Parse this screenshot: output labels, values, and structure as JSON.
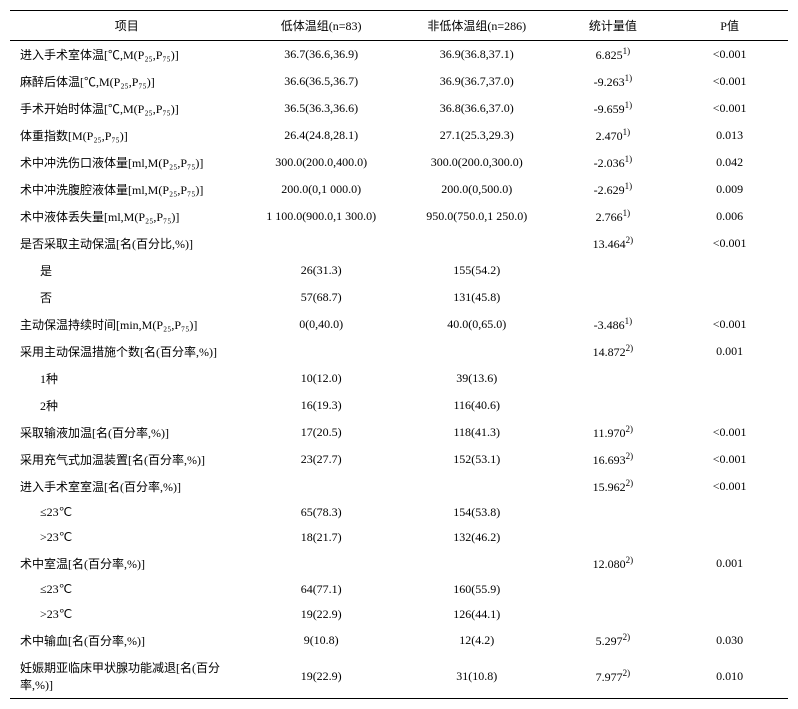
{
  "headers": {
    "item": "项目",
    "group1": "低体温组(n=83)",
    "group2": "非低体温组(n=286)",
    "stat": "统计量值",
    "pval": "P值"
  },
  "rows": [
    {
      "type": "data",
      "label": "进入手术室体温[℃,M(P₂₅,P₇₅)]",
      "g1": "36.7(36.6,36.9)",
      "g2": "36.9(36.8,37.1)",
      "stat": "6.825",
      "sup": "1)",
      "p": "<0.001"
    },
    {
      "type": "data",
      "label": "麻醉后体温[℃,M(P₂₅,P₇₅)]",
      "g1": "36.6(36.5,36.7)",
      "g2": "36.9(36.7,37.0)",
      "stat": "-9.263",
      "sup": "1)",
      "p": "<0.001"
    },
    {
      "type": "data",
      "label": "手术开始时体温[℃,M(P₂₅,P₇₅)]",
      "g1": "36.5(36.3,36.6)",
      "g2": "36.8(36.6,37.0)",
      "stat": "-9.659",
      "sup": "1)",
      "p": "<0.001"
    },
    {
      "type": "data",
      "label": "体重指数[M(P₂₅,P₇₅)]",
      "g1": "26.4(24.8,28.1)",
      "g2": "27.1(25.3,29.3)",
      "stat": "2.470",
      "sup": "1)",
      "p": "0.013"
    },
    {
      "type": "data",
      "label": "术中冲洗伤口液体量[ml,M(P₂₅,P₇₅)]",
      "g1": "300.0(200.0,400.0)",
      "g2": "300.0(200.0,300.0)",
      "stat": "-2.036",
      "sup": "1)",
      "p": "0.042"
    },
    {
      "type": "data",
      "label": "术中冲洗腹腔液体量[ml,M(P₂₅,P₇₅)]",
      "g1": "200.0(0,1 000.0)",
      "g2": "200.0(0,500.0)",
      "stat": "-2.629",
      "sup": "1)",
      "p": "0.009"
    },
    {
      "type": "data",
      "label": "术中液体丢失量[ml,M(P₂₅,P₇₅)]",
      "g1": "1 100.0(900.0,1 300.0)",
      "g2": "950.0(750.0,1 250.0)",
      "stat": "2.766",
      "sup": "1)",
      "p": "0.006"
    },
    {
      "type": "header",
      "label": "是否采取主动保温[名(百分比,%)]",
      "g1": "",
      "g2": "",
      "stat": "13.464",
      "sup": "2)",
      "p": "<0.001"
    },
    {
      "type": "indent",
      "label": "是",
      "g1": "26(31.3)",
      "g2": "155(54.2)",
      "stat": "",
      "sup": "",
      "p": ""
    },
    {
      "type": "indent",
      "label": "否",
      "g1": "57(68.7)",
      "g2": "131(45.8)",
      "stat": "",
      "sup": "",
      "p": ""
    },
    {
      "type": "data",
      "label": "主动保温持续时间[min,M(P₂₅,P₇₅)]",
      "g1": "0(0,40.0)",
      "g2": "40.0(0,65.0)",
      "stat": "-3.486",
      "sup": "1)",
      "p": "<0.001"
    },
    {
      "type": "header",
      "label": "采用主动保温措施个数[名(百分率,%)]",
      "g1": "",
      "g2": "",
      "stat": "14.872",
      "sup": "2)",
      "p": "0.001"
    },
    {
      "type": "indent",
      "label": "1种",
      "g1": "10(12.0)",
      "g2": "39(13.6)",
      "stat": "",
      "sup": "",
      "p": ""
    },
    {
      "type": "indent",
      "label": "2种",
      "g1": "16(19.3)",
      "g2": "116(40.6)",
      "stat": "",
      "sup": "",
      "p": ""
    },
    {
      "type": "data",
      "label": "采取输液加温[名(百分率,%)]",
      "g1": "17(20.5)",
      "g2": "118(41.3)",
      "stat": "11.970",
      "sup": "2)",
      "p": "<0.001"
    },
    {
      "type": "data",
      "label": "采用充气式加温装置[名(百分率,%)]",
      "g1": "23(27.7)",
      "g2": "152(53.1)",
      "stat": "16.693",
      "sup": "2)",
      "p": "<0.001"
    },
    {
      "type": "header",
      "label": "进入手术室室温[名(百分率,%)]",
      "g1": "",
      "g2": "",
      "stat": "15.962",
      "sup": "2)",
      "p": "<0.001"
    },
    {
      "type": "indent",
      "label": "≤23℃",
      "g1": "65(78.3)",
      "g2": "154(53.8)",
      "stat": "",
      "sup": "",
      "p": ""
    },
    {
      "type": "indent",
      "label": ">23℃",
      "g1": "18(21.7)",
      "g2": "132(46.2)",
      "stat": "",
      "sup": "",
      "p": ""
    },
    {
      "type": "header",
      "label": "术中室温[名(百分率,%)]",
      "g1": "",
      "g2": "",
      "stat": "12.080",
      "sup": "2)",
      "p": "0.001"
    },
    {
      "type": "indent",
      "label": "≤23℃",
      "g1": "64(77.1)",
      "g2": "160(55.9)",
      "stat": "",
      "sup": "",
      "p": ""
    },
    {
      "type": "indent",
      "label": ">23℃",
      "g1": "19(22.9)",
      "g2": "126(44.1)",
      "stat": "",
      "sup": "",
      "p": ""
    },
    {
      "type": "data",
      "label": "术中输血[名(百分率,%)]",
      "g1": "9(10.8)",
      "g2": "12(4.2)",
      "stat": "5.297",
      "sup": "2)",
      "p": "0.030"
    },
    {
      "type": "data",
      "label": "妊娠期亚临床甲状腺功能减退[名(百分率,%)]",
      "g1": "19(22.9)",
      "g2": "31(10.8)",
      "stat": "7.977",
      "sup": "2)",
      "p": "0.010"
    }
  ]
}
